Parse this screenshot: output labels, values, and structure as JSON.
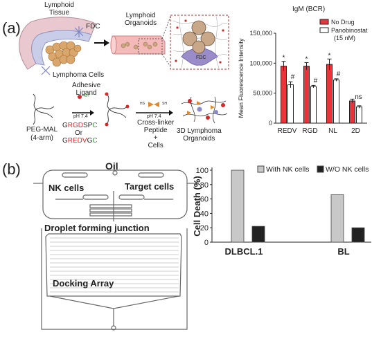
{
  "panel_a": {
    "label": "(a)",
    "tissue_label_1": "Lymphoid",
    "tissue_label_2": "Tissue",
    "fdc_label": "FDC",
    "lymphoma_cells_label": "Lymphoma Cells",
    "organoid_label_1": "Lymphoid",
    "organoid_label_2": "Organoids",
    "fdc_inset_label": "FDC",
    "pegmal_label_1": "PEG-MAL",
    "pegmal_label_2": "(4-arm)",
    "adhesive_label_1": "Adhesive",
    "adhesive_label_2": "Ligand",
    "sh_small": "-SH",
    "ph1": "pH 7.4",
    "peptide1": [
      "G",
      "RGD",
      "SP",
      "C"
    ],
    "or_label": "Or",
    "peptide2": [
      "G",
      "REDV",
      "G",
      "C"
    ],
    "hs_label": "HS",
    "sh_label": "SH",
    "ph2": "pH 7.4",
    "crosslinker_1": "Cross-linker",
    "crosslinker_2": "Peptide",
    "plus": "+",
    "cells": "Cells",
    "organoid3d": "3D Lymphoma",
    "organoid3d_2": "Organoids"
  },
  "panel_b": {
    "label": "(b)",
    "oil_label": "Oil",
    "nk_label": "NK cells",
    "target_label": "Target cells",
    "droplet_label": "Droplet forming junction",
    "docking_label": "Docking Array"
  },
  "colors": {
    "red_bar": "#e8353c",
    "white_bar": "#ffffff",
    "grey_bar": "#c8c8c8",
    "dark_bar": "#222222",
    "peptide_red": "#e02020",
    "peptide_green": "#2aa02a"
  },
  "chart_data": [
    {
      "type": "bar",
      "title": "IgM (BCR)",
      "ylabel": "Mean Fluorescence Intensity",
      "ylim": [
        0,
        150000
      ],
      "yticks": [
        "0",
        "50,000",
        "100,000",
        "150,000"
      ],
      "ytick_values": [
        0,
        50000,
        100000,
        150000
      ],
      "categories": [
        "REDV",
        "RGD",
        "NL",
        "2D"
      ],
      "series": [
        {
          "name": "No Drug",
          "values": [
            95000,
            95000,
            98000,
            37000
          ],
          "errors": [
            8000,
            6000,
            9000,
            3000
          ]
        },
        {
          "name": "Panobinostat",
          "name_2": "(15 nM)",
          "values": [
            64000,
            61000,
            72000,
            27000
          ],
          "errors": [
            5000,
            2000,
            2000,
            2000
          ]
        }
      ],
      "annotations_top": [
        "*",
        "*",
        "*",
        "ns"
      ],
      "annotations_second": [
        "#",
        "#",
        "#",
        ""
      ],
      "legend_position": "top-right"
    },
    {
      "type": "bar",
      "ylabel": "Cell Death (%)",
      "ylim": [
        0,
        100
      ],
      "yticks": [
        "0",
        "20",
        "40",
        "60",
        "80",
        "100"
      ],
      "ytick_values": [
        0,
        20,
        40,
        60,
        80,
        100
      ],
      "categories": [
        "DLBCL.1",
        "BL"
      ],
      "series": [
        {
          "name": "With NK cells",
          "values": [
            100,
            66
          ]
        },
        {
          "name": "W/O NK cells",
          "values": [
            22,
            20
          ]
        }
      ],
      "legend_position": "top"
    }
  ]
}
